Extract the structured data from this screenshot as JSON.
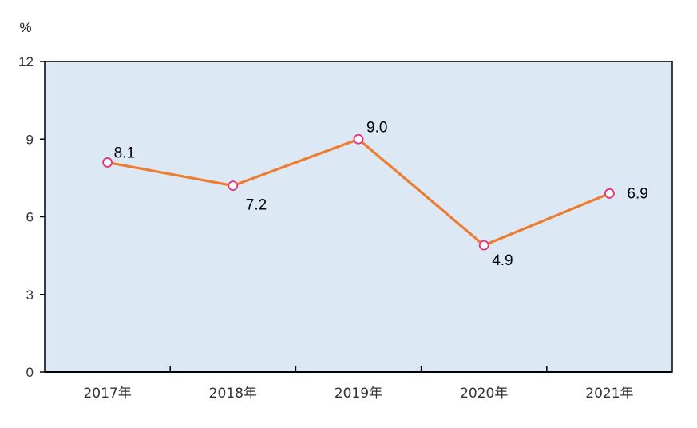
{
  "chart_data": {
    "type": "line",
    "y_unit": "%",
    "categories": [
      "2017年",
      "2018年",
      "2019年",
      "2020年",
      "2021年"
    ],
    "series": [
      {
        "values": [
          8.1,
          7.2,
          9.0,
          4.9,
          6.9
        ]
      }
    ],
    "data_labels": [
      "8.1",
      "7.2",
      "9.0",
      "4.9",
      "6.9"
    ],
    "ylim": [
      0,
      12
    ],
    "y_ticks": [
      0,
      3,
      6,
      9,
      12
    ],
    "y_tick_labels": [
      "0",
      "3",
      "6",
      "9",
      "12"
    ],
    "grid": false,
    "legend": "none",
    "colors": {
      "plot_background": "#dde8f5",
      "line": "#ed7d31",
      "marker_stroke": "#e8307a",
      "marker_fill": "#ffffff",
      "axis": "#000000"
    }
  }
}
